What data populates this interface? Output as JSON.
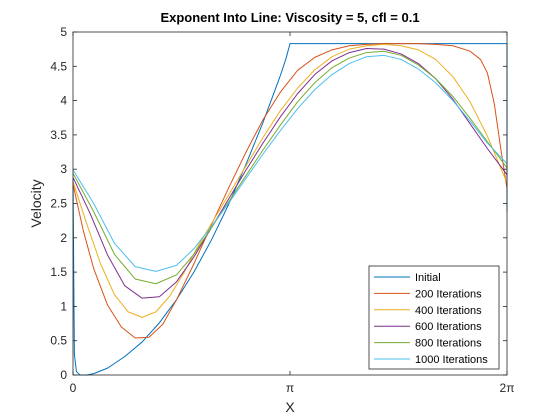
{
  "chart_data": {
    "type": "line",
    "title": "Exponent Into Line: Viscosity = 5, cfl = 0.1",
    "xlabel": "X",
    "ylabel": "Velocity",
    "xlim": [
      0,
      6.2832
    ],
    "ylim": [
      0,
      5
    ],
    "x_ticks": [
      {
        "value": 0,
        "label": "0"
      },
      {
        "value": 3.1416,
        "label": "π"
      },
      {
        "value": 6.2832,
        "label": "2π"
      }
    ],
    "y_ticks": [
      {
        "value": 0,
        "label": "0"
      },
      {
        "value": 0.5,
        "label": "0.5"
      },
      {
        "value": 1,
        "label": "1"
      },
      {
        "value": 1.5,
        "label": "1.5"
      },
      {
        "value": 2,
        "label": "2"
      },
      {
        "value": 2.5,
        "label": "2.5"
      },
      {
        "value": 3,
        "label": "3"
      },
      {
        "value": 3.5,
        "label": "3.5"
      },
      {
        "value": 4,
        "label": "4"
      },
      {
        "value": 4.5,
        "label": "4.5"
      },
      {
        "value": 5,
        "label": "5"
      }
    ],
    "grid": false,
    "legend_position": "bottom-right",
    "series": [
      {
        "name": "Initial",
        "color": "#0072BD",
        "x": [
          0,
          0.02,
          0.05,
          0.1,
          0.2,
          0.3,
          0.5,
          0.75,
          1.0,
          1.25,
          1.5,
          1.75,
          2.0,
          2.25,
          2.5,
          2.75,
          3.0,
          3.08,
          3.1416,
          3.5,
          4.0,
          4.5,
          5.0,
          5.5,
          6.0,
          6.24,
          6.2832,
          6.2832
        ],
        "y": [
          2.85,
          0.3,
          0.05,
          0.0,
          0.0,
          0.02,
          0.1,
          0.27,
          0.48,
          0.76,
          1.1,
          1.5,
          1.96,
          2.48,
          3.06,
          3.68,
          4.36,
          4.6,
          4.83,
          4.83,
          4.83,
          4.83,
          4.83,
          4.83,
          4.83,
          4.83,
          4.83,
          2.38
        ]
      },
      {
        "name": "200 Iterations",
        "color": "#D95319",
        "x": [
          0,
          0.15,
          0.3,
          0.5,
          0.7,
          0.9,
          1.1,
          1.3,
          1.5,
          1.75,
          2.0,
          2.25,
          2.5,
          2.75,
          3.0,
          3.25,
          3.5,
          3.75,
          4.0,
          4.25,
          4.5,
          4.75,
          5.0,
          5.25,
          5.5,
          5.75,
          5.9,
          6.0,
          6.1,
          6.2,
          6.2832
        ],
        "y": [
          2.78,
          2.1,
          1.55,
          1.02,
          0.7,
          0.54,
          0.55,
          0.74,
          1.1,
          1.62,
          2.18,
          2.72,
          3.24,
          3.72,
          4.12,
          4.44,
          4.63,
          4.74,
          4.8,
          4.82,
          4.83,
          4.83,
          4.83,
          4.82,
          4.8,
          4.72,
          4.6,
          4.4,
          3.95,
          3.25,
          2.72
        ]
      },
      {
        "name": "400 Iterations",
        "color": "#EDB120",
        "x": [
          0,
          0.2,
          0.4,
          0.6,
          0.8,
          1.0,
          1.2,
          1.4,
          1.6,
          1.8,
          2.0,
          2.25,
          2.5,
          2.75,
          3.0,
          3.25,
          3.5,
          3.75,
          4.0,
          4.25,
          4.5,
          4.75,
          5.0,
          5.25,
          5.5,
          5.75,
          6.0,
          6.2832
        ],
        "y": [
          2.82,
          2.2,
          1.62,
          1.17,
          0.92,
          0.84,
          0.92,
          1.15,
          1.48,
          1.86,
          2.2,
          2.62,
          3.04,
          3.46,
          3.85,
          4.18,
          4.45,
          4.64,
          4.75,
          4.8,
          4.82,
          4.8,
          4.74,
          4.6,
          4.35,
          3.98,
          3.48,
          2.8
        ]
      },
      {
        "name": "600 Iterations",
        "color": "#7E2F8E",
        "x": [
          0,
          0.25,
          0.5,
          0.75,
          1.0,
          1.25,
          1.5,
          1.75,
          2.0,
          2.25,
          2.5,
          2.75,
          3.0,
          3.25,
          3.5,
          3.75,
          4.0,
          4.25,
          4.5,
          4.75,
          5.0,
          5.25,
          5.5,
          5.75,
          6.0,
          6.2832
        ],
        "y": [
          2.88,
          2.35,
          1.75,
          1.3,
          1.12,
          1.14,
          1.36,
          1.72,
          2.14,
          2.56,
          2.98,
          3.38,
          3.76,
          4.1,
          4.38,
          4.58,
          4.7,
          4.76,
          4.75,
          4.68,
          4.54,
          4.32,
          4.02,
          3.66,
          3.3,
          2.92
        ]
      },
      {
        "name": "800 Iterations",
        "color": "#77AC30",
        "x": [
          0,
          0.3,
          0.6,
          0.9,
          1.2,
          1.5,
          1.75,
          2.0,
          2.25,
          2.5,
          2.75,
          3.0,
          3.25,
          3.5,
          3.75,
          4.0,
          4.25,
          4.5,
          4.75,
          5.0,
          5.25,
          5.5,
          5.75,
          6.0,
          6.2832
        ],
        "y": [
          2.94,
          2.38,
          1.76,
          1.4,
          1.33,
          1.46,
          1.76,
          2.14,
          2.52,
          2.9,
          3.28,
          3.64,
          3.98,
          4.26,
          4.48,
          4.62,
          4.7,
          4.72,
          4.66,
          4.52,
          4.32,
          4.06,
          3.74,
          3.4,
          3.02
        ]
      },
      {
        "name": "1000 Iterations",
        "color": "#4DBEEE",
        "x": [
          0,
          0.3,
          0.6,
          0.9,
          1.2,
          1.5,
          1.75,
          2.0,
          2.25,
          2.5,
          2.75,
          3.0,
          3.25,
          3.5,
          3.75,
          4.0,
          4.25,
          4.5,
          4.75,
          5.0,
          5.25,
          5.5,
          5.75,
          6.0,
          6.2832
        ],
        "y": [
          2.99,
          2.5,
          1.92,
          1.58,
          1.51,
          1.6,
          1.84,
          2.16,
          2.5,
          2.86,
          3.22,
          3.56,
          3.88,
          4.16,
          4.38,
          4.54,
          4.64,
          4.66,
          4.6,
          4.46,
          4.26,
          4.0,
          3.7,
          3.38,
          3.08
        ]
      }
    ]
  }
}
